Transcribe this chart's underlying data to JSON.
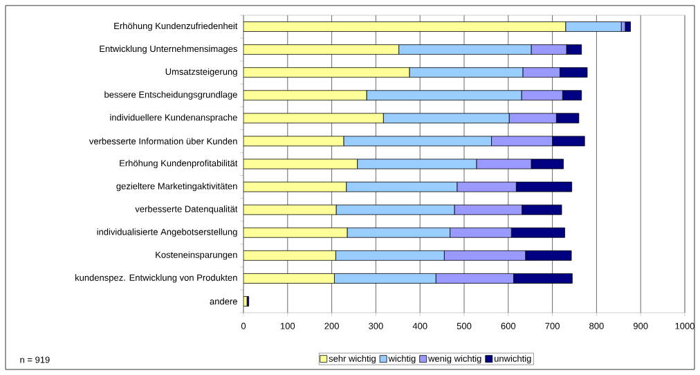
{
  "chart_data": {
    "type": "bar",
    "orientation": "horizontal",
    "stacked": true,
    "categories": [
      "Erhöhung Kundenzufriedenheit",
      "Entwicklung Unternehmensimages",
      "Umsatzsteigerung",
      "bessere Entscheidungsgrundlage",
      "individuellere Kundenansprache",
      "verbesserte Information über Kunden",
      "Erhöhung Kundenprofitabilität",
      "gezieltere Marketingaktivitäten",
      "verbesserte Datenqualität",
      "individualisierte Angebotserstellung",
      "Kosteneinsparungen",
      "kundenspez. Entwicklung von Produkten",
      "andere"
    ],
    "series": [
      {
        "name": "sehr wichtig",
        "color": "#ffff99",
        "values": [
          730,
          352,
          376,
          279,
          317,
          227,
          258,
          233,
          210,
          235,
          209,
          206,
          8
        ]
      },
      {
        "name": "wichtig",
        "color": "#99ccff",
        "values": [
          126,
          300,
          257,
          351,
          285,
          335,
          270,
          251,
          268,
          233,
          246,
          230,
          0
        ]
      },
      {
        "name": "wenig wichtig",
        "color": "#9999ff",
        "values": [
          9,
          80,
          84,
          93,
          107,
          138,
          124,
          134,
          153,
          139,
          184,
          176,
          0
        ]
      },
      {
        "name": "unwichtig",
        "color": "#000080",
        "values": [
          12,
          34,
          62,
          43,
          51,
          73,
          73,
          126,
          90,
          121,
          104,
          133,
          4
        ]
      }
    ],
    "xlim": [
      0,
      1000
    ],
    "xticks": [
      0,
      100,
      200,
      300,
      400,
      500,
      600,
      700,
      800,
      900,
      1000
    ],
    "grid": "x",
    "legend": "bottom",
    "annotations": [
      "n = 919"
    ]
  }
}
